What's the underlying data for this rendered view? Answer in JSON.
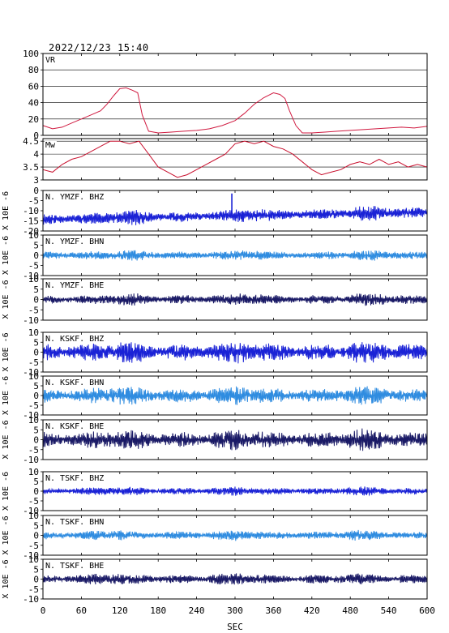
{
  "chart_data": {
    "type": "line",
    "title": "2022/12/23  15:40",
    "xlabel": "SEC",
    "xlim": [
      0,
      600
    ],
    "x_ticks": [
      0,
      60,
      120,
      180,
      240,
      300,
      360,
      420,
      480,
      540,
      600
    ],
    "colors": {
      "blue": "#1a22d6",
      "light": "#2f8ce0",
      "navy": "#1a1a66",
      "vr": "#d01a40",
      "mw": "#c8102e"
    },
    "panels": [
      {
        "label": "VR",
        "kind": "line",
        "color_key": "vr",
        "ylim": [
          0,
          100
        ],
        "y_ticks": [
          0,
          20,
          40,
          60,
          80,
          100
        ],
        "grid": true,
        "x": [
          0,
          15,
          30,
          45,
          60,
          75,
          90,
          100,
          110,
          120,
          130,
          140,
          148,
          155,
          165,
          180,
          200,
          220,
          240,
          260,
          280,
          300,
          315,
          330,
          345,
          360,
          370,
          378,
          385,
          395,
          405,
          420,
          440,
          460,
          480,
          500,
          520,
          540,
          560,
          580,
          600
        ],
        "y": [
          12,
          8,
          10,
          15,
          20,
          25,
          30,
          38,
          48,
          57,
          58,
          55,
          52,
          25,
          5,
          3,
          4,
          5,
          6,
          8,
          12,
          18,
          27,
          38,
          46,
          52,
          50,
          45,
          30,
          12,
          3,
          3,
          4,
          5,
          6,
          7,
          8,
          9,
          10,
          9,
          11
        ]
      },
      {
        "label": "Mw",
        "kind": "line",
        "color_key": "mw",
        "ylim": [
          3.0,
          4.6
        ],
        "y_ticks": [
          3.0,
          3.5,
          4.0,
          4.5
        ],
        "grid": true,
        "x": [
          0,
          15,
          30,
          45,
          60,
          75,
          90,
          105,
          120,
          135,
          150,
          165,
          180,
          195,
          210,
          225,
          240,
          255,
          270,
          285,
          300,
          315,
          330,
          345,
          360,
          375,
          390,
          405,
          420,
          435,
          450,
          465,
          480,
          495,
          510,
          525,
          540,
          555,
          570,
          585,
          600
        ],
        "y": [
          3.4,
          3.3,
          3.6,
          3.8,
          3.9,
          4.1,
          4.3,
          4.5,
          4.5,
          4.4,
          4.5,
          4.0,
          3.5,
          3.3,
          3.1,
          3.2,
          3.4,
          3.6,
          3.8,
          4.0,
          4.4,
          4.5,
          4.4,
          4.5,
          4.3,
          4.2,
          4.0,
          3.7,
          3.4,
          3.2,
          3.3,
          3.4,
          3.6,
          3.7,
          3.6,
          3.8,
          3.6,
          3.7,
          3.5,
          3.6,
          3.5
        ]
      },
      {
        "label": "N. YMZF. BHZ",
        "kind": "wave",
        "color_key": "blue",
        "ylim": [
          -20,
          0
        ],
        "y_ticks": [
          -20,
          -15,
          -10,
          -5,
          0
        ],
        "ylabel": "X 10E -6",
        "offset": -12.5,
        "amp": 2.2,
        "trend": 3.5,
        "spike_t": 295,
        "spike_y": -1.5,
        "seed": 11
      },
      {
        "label": "N. YMZF. BHN",
        "kind": "wave",
        "color_key": "light",
        "ylim": [
          -10,
          10
        ],
        "y_ticks": [
          -10,
          -5,
          0,
          5,
          10
        ],
        "ylabel": "X 10E -6",
        "offset": 0,
        "amp": 1.6,
        "seed": 22
      },
      {
        "label": "N. YMZF. BHE",
        "kind": "wave",
        "color_key": "navy",
        "ylim": [
          -10,
          10
        ],
        "y_ticks": [
          -10,
          -5,
          0,
          5,
          10
        ],
        "ylabel": "X 10E -6",
        "offset": 0,
        "amp": 1.8,
        "seed": 33
      },
      {
        "label": "N. KSKF. BHZ",
        "kind": "wave",
        "color_key": "blue",
        "ylim": [
          -10,
          10
        ],
        "y_ticks": [
          -10,
          -5,
          0,
          5,
          10
        ],
        "ylabel": "X 10E -6",
        "offset": 0,
        "amp": 3.4,
        "seed": 44
      },
      {
        "label": "N. KSKF. BHN",
        "kind": "wave",
        "color_key": "light",
        "ylim": [
          -10,
          10
        ],
        "y_ticks": [
          -10,
          -5,
          0,
          5,
          10
        ],
        "ylabel": "X 10E -6",
        "offset": 0,
        "amp": 3.0,
        "seed": 55
      },
      {
        "label": "N. KSKF. BHE",
        "kind": "wave",
        "color_key": "navy",
        "ylim": [
          -10,
          10
        ],
        "y_ticks": [
          -10,
          -5,
          0,
          5,
          10
        ],
        "ylabel": "X 10E -6",
        "offset": 0,
        "amp": 3.2,
        "seed": 66
      },
      {
        "label": "N. TSKF. BHZ",
        "kind": "wave",
        "color_key": "blue",
        "ylim": [
          -10,
          10
        ],
        "y_ticks": [
          -10,
          -5,
          0,
          5,
          10
        ],
        "ylabel": "X 10E -6",
        "offset": 0,
        "amp": 1.4,
        "seed": 77
      },
      {
        "label": "N. TSKF. BHN",
        "kind": "wave",
        "color_key": "light",
        "ylim": [
          -10,
          10
        ],
        "y_ticks": [
          -10,
          -5,
          0,
          5,
          10
        ],
        "ylabel": "X 10E -6",
        "offset": 0,
        "amp": 1.6,
        "seed": 88
      },
      {
        "label": "N. TSKF. BHE",
        "kind": "wave",
        "color_key": "navy",
        "ylim": [
          -10,
          10
        ],
        "y_ticks": [
          -10,
          -5,
          0,
          5,
          10
        ],
        "ylabel": "X 10E -6",
        "offset": 0,
        "amp": 1.8,
        "seed": 99
      }
    ]
  }
}
